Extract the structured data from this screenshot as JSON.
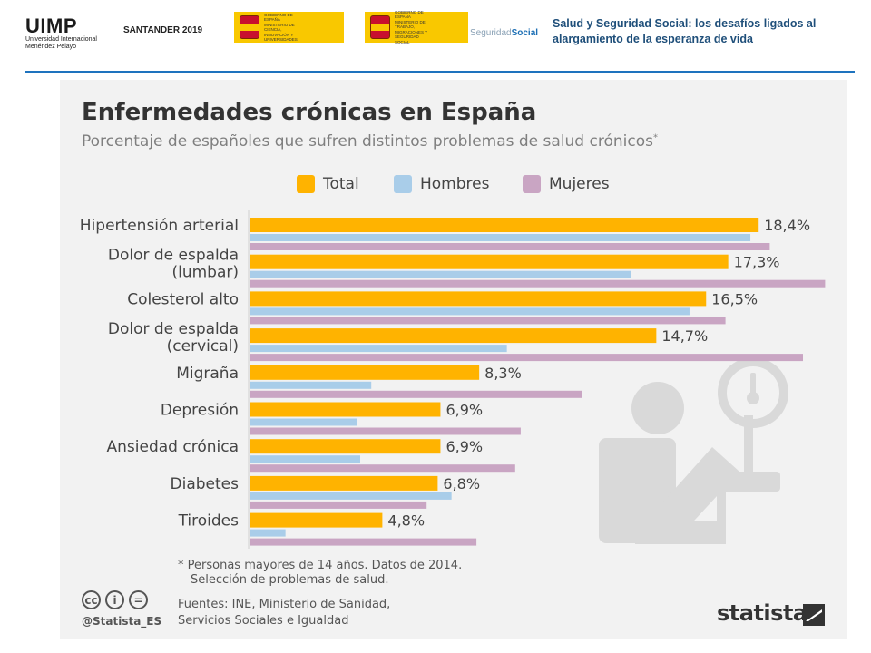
{
  "header": {
    "uimp_logo_text": "UIMP",
    "uimp_full_name": "Universidad Internacional Menéndez Pelayo",
    "event": "SANTANDER 2019",
    "ministry1_text": "GOBIERNO DE ESPAÑA  MINISTERIO DE CIENCIA, INNOVACIÓN Y UNIVERSIDADES",
    "ministry2_text": "GOBIERNO DE ESPAÑA  MINISTERIO DE TRABAJO, MIGRACIONES Y SEGURIDAD SOCIAL",
    "seguridad_social_a": "Seguridad",
    "seguridad_social_b": "Social",
    "slide_title": "Salud y Seguridad Social: los desafíos ligados al alargamiento de la esperanza de vida",
    "accent_color": "#1e73be"
  },
  "chart_data": {
    "type": "bar",
    "orientation": "horizontal",
    "title": "Enfermedades crónicas en España",
    "subtitle": "Porcentaje de españoles que sufren distintos problemas de salud crónicos",
    "subtitle_mark": "*",
    "categories": [
      [
        "Hipertensión arterial"
      ],
      [
        "Dolor de espalda",
        "(lumbar)"
      ],
      [
        "Colesterol alto"
      ],
      [
        "Dolor de espalda",
        "(cervical)"
      ],
      [
        "Migraña"
      ],
      [
        "Depresión"
      ],
      [
        "Ansiedad crónica"
      ],
      [
        "Diabetes"
      ],
      [
        "Tiroides"
      ]
    ],
    "series": [
      {
        "name": "Total",
        "color": "#ffb300",
        "values": [
          18.4,
          17.3,
          16.5,
          14.7,
          8.3,
          6.9,
          6.9,
          6.8,
          4.8
        ],
        "labeled": true
      },
      {
        "name": "Hombres",
        "color": "#a9cde9",
        "values": [
          18.1,
          13.8,
          15.9,
          9.3,
          4.4,
          3.9,
          4.0,
          7.3,
          1.3
        ],
        "labeled": false
      },
      {
        "name": "Mujeres",
        "color": "#c9a5c3",
        "values": [
          18.8,
          20.8,
          17.2,
          20.0,
          12.0,
          9.8,
          9.6,
          6.4,
          8.2
        ],
        "labeled": false
      }
    ],
    "data_labels": [
      "18,4%",
      "17,3%",
      "16,5%",
      "14,7%",
      "8,3%",
      "6,9%",
      "6,9%",
      "6,8%",
      "4,8%"
    ],
    "xlim": [
      0,
      21
    ],
    "legend_position": "top",
    "grid": false
  },
  "footnote": {
    "line1": "* Personas mayores de 14 años. Datos de 2014.",
    "line2": "Selección de problemas de salud."
  },
  "sources": {
    "line1": "Fuentes: INE, Ministerio de Sanidad,",
    "line2": "Servicios Sociales e Igualdad"
  },
  "credits": {
    "cc_icons": [
      "cc-icon",
      "by-icon",
      "equals-icon"
    ],
    "cc_glyphs": [
      "cc",
      "i",
      "="
    ],
    "handle": "@Statista_ES",
    "brand": "statista"
  },
  "illustration": {
    "name": "blood-pressure-patient-icon",
    "color": "#d9d9d9"
  }
}
